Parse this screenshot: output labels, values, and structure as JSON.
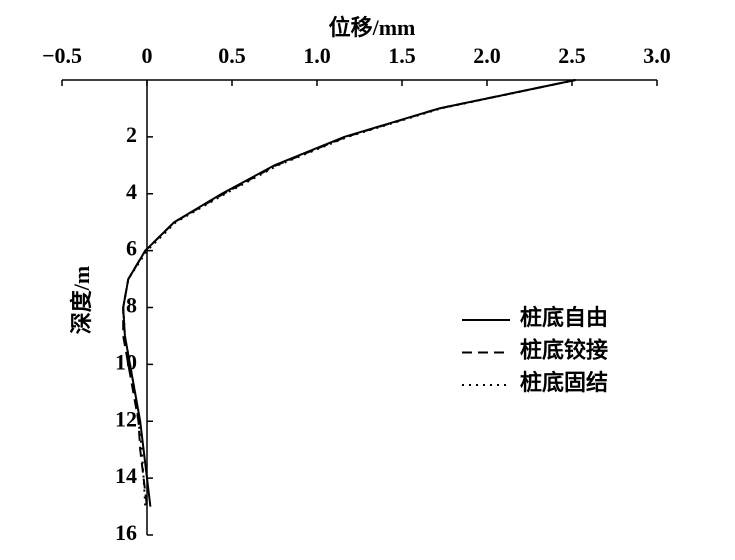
{
  "chart_data": {
    "type": "line",
    "x_label": "位移/mm",
    "y_label": "深度/m",
    "y": [
      0,
      1,
      2,
      3,
      4,
      5,
      6,
      7,
      8,
      9,
      10,
      11,
      12,
      13,
      14,
      15
    ],
    "series": [
      {
        "name": "桩底自由",
        "color": "#000000",
        "dash": "solid",
        "values": [
          2.52,
          1.72,
          1.16,
          0.75,
          0.44,
          0.16,
          -0.01,
          -0.11,
          -0.14,
          -0.13,
          -0.1,
          -0.07,
          -0.04,
          -0.02,
          0.0,
          0.02
        ]
      },
      {
        "name": "桩底铰接",
        "color": "#000000",
        "dash": "dashed",
        "values": [
          2.52,
          1.72,
          1.17,
          0.76,
          0.45,
          0.16,
          -0.01,
          -0.11,
          -0.14,
          -0.14,
          -0.11,
          -0.08,
          -0.05,
          -0.04,
          -0.02,
          0.0
        ]
      },
      {
        "name": "桩底固结",
        "color": "#000000",
        "dash": "dotted",
        "values": [
          2.52,
          1.73,
          1.18,
          0.77,
          0.46,
          0.17,
          0.0,
          -0.11,
          -0.14,
          -0.13,
          -0.1,
          -0.07,
          -0.05,
          -0.03,
          -0.02,
          -0.01
        ]
      }
    ],
    "xlim": [
      -0.5,
      3.0
    ],
    "xticks": [
      {
        "value": -0.5,
        "label": "−0.5"
      },
      0,
      0.5,
      {
        "value": 1.0,
        "label": "1.0"
      },
      1.5,
      {
        "value": 2.0,
        "label": "2.0"
      },
      2.5,
      {
        "value": 3.0,
        "label": "3.0"
      }
    ],
    "ylim": [
      0,
      16
    ],
    "yticks": [
      2,
      4,
      6,
      8,
      10,
      12,
      14,
      16
    ],
    "y_inverted": true,
    "x_axis_position": "top",
    "legend": "right"
  }
}
